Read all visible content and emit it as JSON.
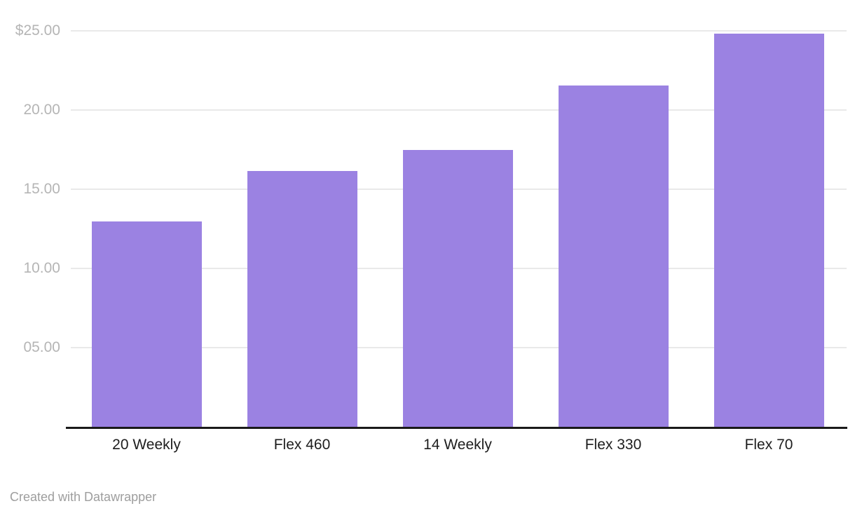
{
  "chart_data": {
    "type": "bar",
    "categories": [
      "20 Weekly",
      "Flex 460",
      "14 Weekly",
      "Flex 330",
      "Flex 70"
    ],
    "values": [
      12.95,
      16.15,
      17.45,
      21.55,
      24.8
    ],
    "title": "",
    "xlabel": "",
    "ylabel": "",
    "ylim": [
      0,
      25
    ],
    "yticks": [
      5,
      10,
      15,
      20,
      25
    ],
    "ytick_labels": [
      "05.00",
      "10.00",
      "15.00",
      "20.00",
      "$25.00"
    ],
    "grid": true,
    "legend_position": "none",
    "bar_color": "#9b82e2"
  },
  "footer": {
    "credit": "Created with Datawrapper"
  },
  "colors": {
    "bar": "#9b82e2",
    "gridline": "#e9e9e9",
    "axis_line": "#1a1a1a",
    "tick_label": "#b5b5b5",
    "category_label": "#1d1d1d",
    "footer_text": "#9e9e9e",
    "background": "#ffffff"
  }
}
